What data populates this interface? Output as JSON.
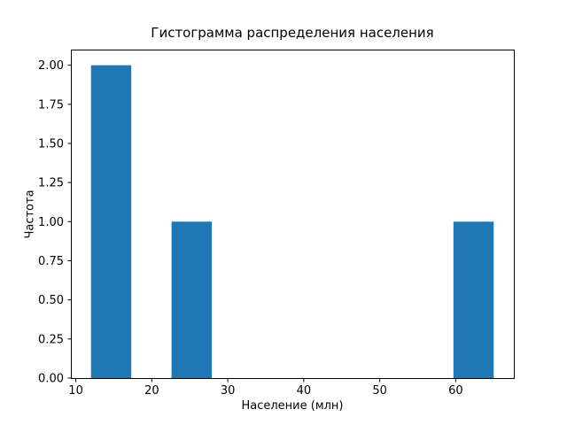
{
  "chart_data": {
    "type": "bar",
    "subtype": "histogram",
    "title": "Гистограмма распределения населения",
    "xlabel": "Население (млн)",
    "ylabel": "Частота",
    "bar_color": "#1f77b4",
    "bars": [
      {
        "x0": 12.0,
        "x1": 17.3,
        "count": 2
      },
      {
        "x0": 22.6,
        "x1": 27.9,
        "count": 1
      },
      {
        "x0": 59.7,
        "x1": 65.0,
        "count": 1
      }
    ],
    "xticks": [
      10,
      20,
      30,
      40,
      50,
      60
    ],
    "yticks": [
      0,
      0.25,
      0.5,
      0.75,
      1.0,
      1.25,
      1.5,
      1.75,
      2.0
    ],
    "ytick_labels": [
      "0.00",
      "0.25",
      "0.50",
      "0.75",
      "1.00",
      "1.25",
      "1.50",
      "1.75",
      "2.00"
    ],
    "xlim": [
      9.35,
      67.65
    ],
    "ylim": [
      0,
      2.1
    ],
    "grid": false,
    "legend": "none"
  }
}
